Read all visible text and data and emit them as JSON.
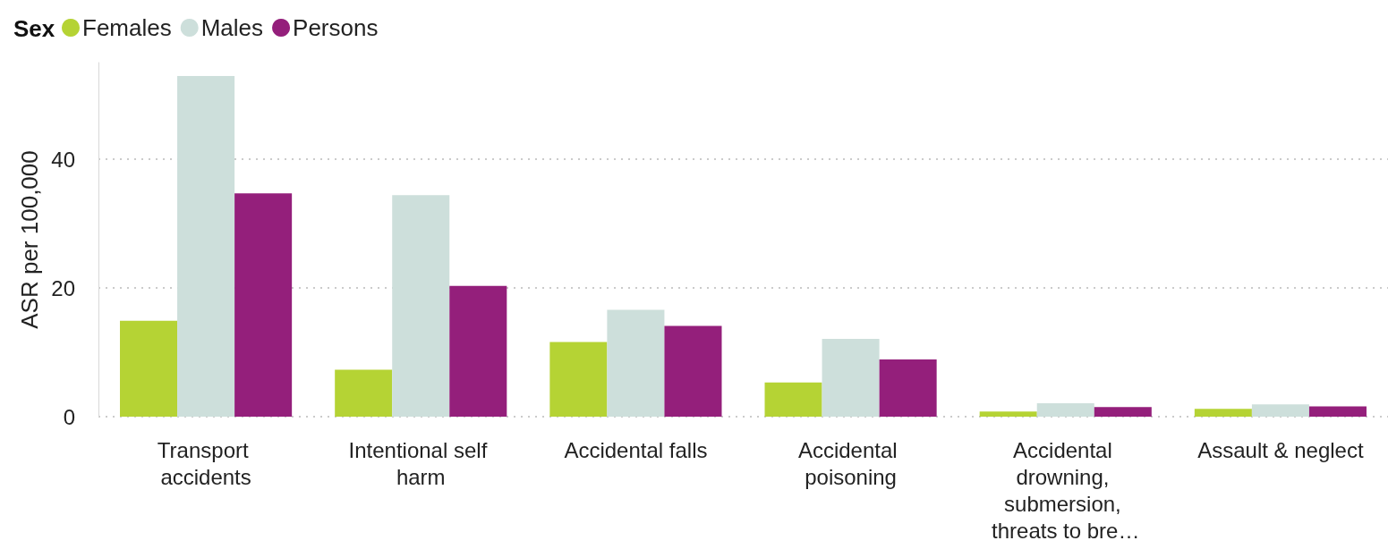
{
  "chart_data": {
    "type": "bar",
    "ylabel": "ASR per 100,000",
    "legend_title": "Sex",
    "legend": "top left",
    "grid": "y",
    "categories": [
      "Transport accidents",
      "Intentional self harm",
      "Accidental falls",
      "Accidental poisoning",
      "Accidental drowning, submersion, threats to bre…",
      "Assault & neglect"
    ],
    "series": [
      {
        "name": "Females",
        "color": "#b5d334",
        "values": [
          14.9,
          7.3,
          11.6,
          5.3,
          0.8,
          1.2
        ]
      },
      {
        "name": "Males",
        "color": "#cddfdb",
        "values": [
          52.9,
          34.4,
          16.6,
          12.1,
          2.1,
          1.9
        ]
      },
      {
        "name": "Persons",
        "color": "#941f7b",
        "values": [
          34.7,
          20.3,
          14.1,
          8.9,
          1.5,
          1.6
        ]
      }
    ],
    "ylim": [
      0,
      55
    ],
    "yticks": [
      0,
      20,
      40
    ]
  }
}
